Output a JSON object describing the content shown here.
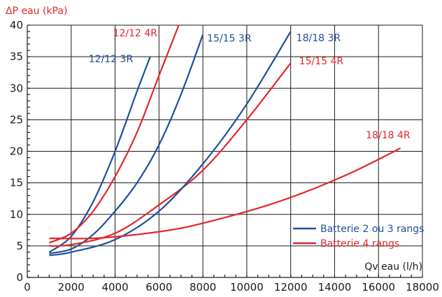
{
  "chart_data": {
    "type": "line",
    "ylabel": "ΔP eau (kPa)",
    "xlabel": "Qv eau (l/h)",
    "xlim": [
      0,
      18000
    ],
    "ylim": [
      0,
      40
    ],
    "x_ticks": [
      0,
      2000,
      4000,
      6000,
      8000,
      10000,
      12000,
      14000,
      16000,
      18000
    ],
    "y_ticks": [
      0,
      5,
      10,
      15,
      20,
      25,
      30,
      35,
      40
    ],
    "grid": true,
    "legend_position": "right",
    "colors": {
      "blue": "#1f4e9c",
      "red": "#e3262d"
    },
    "legend": [
      {
        "label": "Batterie 2 ou 3 rangs",
        "color": "#1f4e9c"
      },
      {
        "label": "Batterie 4 rangs",
        "color": "#e3262d"
      }
    ],
    "series": [
      {
        "name": "12/12 3R",
        "color": "#1f4e9c",
        "x": [
          1000,
          2000,
          3000,
          4000,
          5000,
          5600
        ],
        "y": [
          4.0,
          6.5,
          12.0,
          20.0,
          29.5,
          35.0
        ]
      },
      {
        "name": "12/12 4R",
        "color": "#e3262d",
        "x": [
          1000,
          2000,
          3000,
          4000,
          5000,
          6000,
          6900
        ],
        "y": [
          5.5,
          7.0,
          10.5,
          16.0,
          23.0,
          32.0,
          40.0
        ]
      },
      {
        "name": "15/15 3R",
        "color": "#1f4e9c",
        "x": [
          1000,
          2000,
          3000,
          4000,
          5000,
          6000,
          7000,
          8000
        ],
        "y": [
          3.8,
          4.5,
          6.8,
          10.5,
          15.0,
          21.0,
          29.0,
          38.5
        ]
      },
      {
        "name": "15/15 4R",
        "color": "#e3262d",
        "x": [
          1000,
          2000,
          4000,
          6000,
          8000,
          10000,
          12000
        ],
        "y": [
          5.0,
          5.2,
          7.0,
          11.5,
          17.0,
          25.0,
          34.0
        ]
      },
      {
        "name": "18/18 3R",
        "color": "#1f4e9c",
        "x": [
          1000,
          2000,
          4000,
          6000,
          8000,
          10000,
          12000
        ],
        "y": [
          3.5,
          4.0,
          6.0,
          10.5,
          18.0,
          27.5,
          39.0
        ]
      },
      {
        "name": "18/18 4R",
        "color": "#e3262d",
        "x": [
          1000,
          3000,
          5000,
          7000,
          9000,
          11000,
          13000,
          15000,
          17000
        ],
        "y": [
          6.2,
          6.2,
          6.8,
          7.8,
          9.5,
          11.5,
          14.0,
          17.0,
          20.5
        ]
      }
    ]
  }
}
